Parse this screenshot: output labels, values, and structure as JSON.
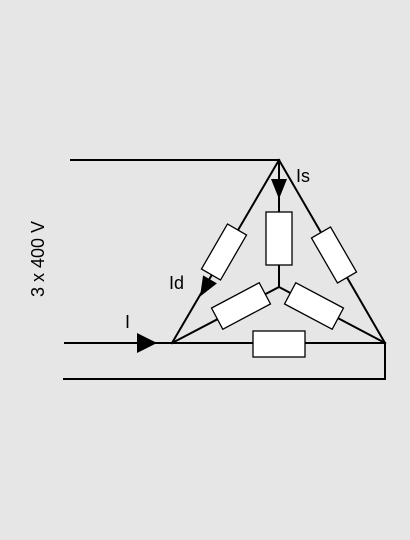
{
  "diagram": {
    "supply_label": "3 x 400 V",
    "current_line_label": "I",
    "current_delta_label": "Id",
    "current_star_label": "Is"
  },
  "colors": {
    "background": "#e6e6e6",
    "line": "#000000",
    "resistor_fill": "#ffffff"
  }
}
